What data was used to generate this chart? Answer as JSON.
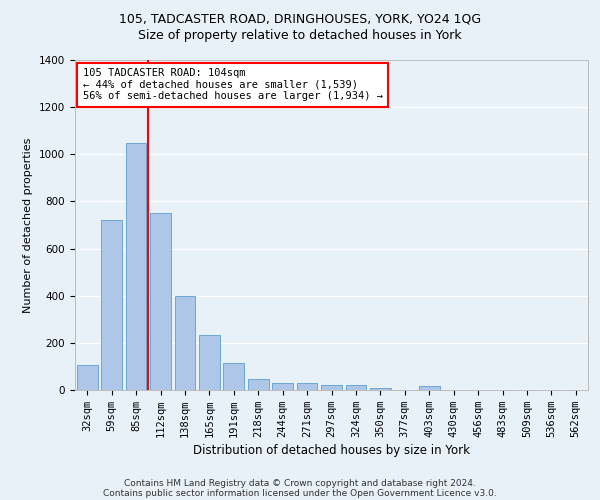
{
  "title": "105, TADCASTER ROAD, DRINGHOUSES, YORK, YO24 1QG",
  "subtitle": "Size of property relative to detached houses in York",
  "xlabel": "Distribution of detached houses by size in York",
  "ylabel": "Number of detached properties",
  "categories": [
    "32sqm",
    "59sqm",
    "85sqm",
    "112sqm",
    "138sqm",
    "165sqm",
    "191sqm",
    "218sqm",
    "244sqm",
    "271sqm",
    "297sqm",
    "324sqm",
    "350sqm",
    "377sqm",
    "403sqm",
    "430sqm",
    "456sqm",
    "483sqm",
    "509sqm",
    "536sqm",
    "562sqm"
  ],
  "values": [
    105,
    720,
    1050,
    750,
    400,
    235,
    115,
    45,
    28,
    28,
    22,
    20,
    10,
    0,
    15,
    0,
    0,
    0,
    0,
    0,
    0
  ],
  "bar_color": "#aec6e8",
  "bar_edge_color": "#5a9fd4",
  "vline_color": "red",
  "vline_x_index": 2.5,
  "annotation_text": "105 TADCASTER ROAD: 104sqm\n← 44% of detached houses are smaller (1,539)\n56% of semi-detached houses are larger (1,934) →",
  "annotation_box_color": "white",
  "annotation_box_edge_color": "red",
  "ylim": [
    0,
    1400
  ],
  "yticks": [
    0,
    200,
    400,
    600,
    800,
    1000,
    1200,
    1400
  ],
  "footer_line1": "Contains HM Land Registry data © Crown copyright and database right 2024.",
  "footer_line2": "Contains public sector information licensed under the Open Government Licence v3.0.",
  "bg_color": "#e8f0f8",
  "grid_color": "white",
  "title_fontsize": 9,
  "subtitle_fontsize": 9,
  "ylabel_fontsize": 8,
  "xlabel_fontsize": 8.5,
  "tick_fontsize": 7.5,
  "annotation_fontsize": 7.5,
  "footer_fontsize": 6.5
}
